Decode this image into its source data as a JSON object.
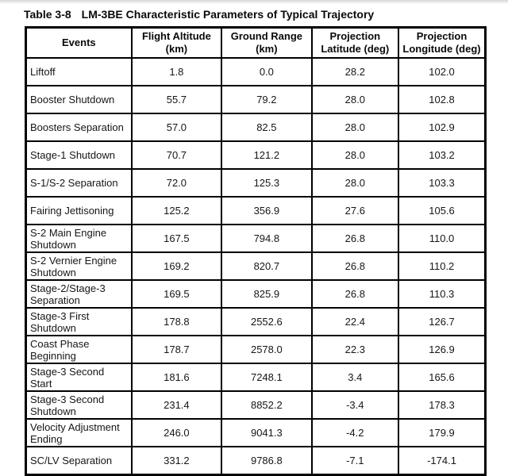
{
  "title": {
    "label": "Table 3-8",
    "text": "LM-3BE Characteristic Parameters of Typical Trajectory"
  },
  "table": {
    "headers": [
      "Events",
      "Flight Altitude\n(km)",
      "Ground Range\n(km)",
      "Projection\nLatitude (deg)",
      "Projection\nLongitude (deg)"
    ],
    "rows": [
      {
        "event": "Liftoff",
        "values": [
          "1.8",
          "0.0",
          "28.2",
          "102.0"
        ]
      },
      {
        "event": "Booster Shutdown",
        "values": [
          "55.7",
          "79.2",
          "28.0",
          "102.8"
        ]
      },
      {
        "event": "Boosters Separation",
        "values": [
          "57.0",
          "82.5",
          "28.0",
          "102.9"
        ]
      },
      {
        "event": "Stage-1 Shutdown",
        "values": [
          "70.7",
          "121.2",
          "28.0",
          "103.2"
        ]
      },
      {
        "event": "S-1/S-2 Separation",
        "values": [
          "72.0",
          "125.3",
          "28.0",
          "103.3"
        ]
      },
      {
        "event": "Fairing Jettisoning",
        "values": [
          "125.2",
          "356.9",
          "27.6",
          "105.6"
        ]
      },
      {
        "event": "S-2 Main Engine Shutdown",
        "values": [
          "167.5",
          "794.8",
          "26.8",
          "110.0"
        ]
      },
      {
        "event": "S-2 Vernier Engine Shutdown",
        "values": [
          "169.2",
          "820.7",
          "26.8",
          "110.2"
        ]
      },
      {
        "event": "Stage-2/Stage-3 Separation",
        "values": [
          "169.5",
          "825.9",
          "26.8",
          "110.3"
        ]
      },
      {
        "event": "Stage-3 First Shutdown",
        "values": [
          "178.8",
          "2552.6",
          "22.4",
          "126.7"
        ]
      },
      {
        "event": "Coast Phase Beginning",
        "values": [
          "178.7",
          "2578.0",
          "22.3",
          "126.9"
        ]
      },
      {
        "event": "Stage-3 Second Start",
        "values": [
          "181.6",
          "7248.1",
          "3.4",
          "165.6"
        ]
      },
      {
        "event": "Stage-3 Second Shutdown",
        "values": [
          "231.4",
          "8852.2",
          "-3.4",
          "178.3"
        ]
      },
      {
        "event": "Velocity Adjustment Ending",
        "values": [
          "246.0",
          "9041.3",
          "-4.2",
          "179.9"
        ]
      },
      {
        "event": "SC/LV Separation",
        "values": [
          "331.2",
          "9786.8",
          "-7.1",
          "-174.1"
        ]
      }
    ]
  }
}
